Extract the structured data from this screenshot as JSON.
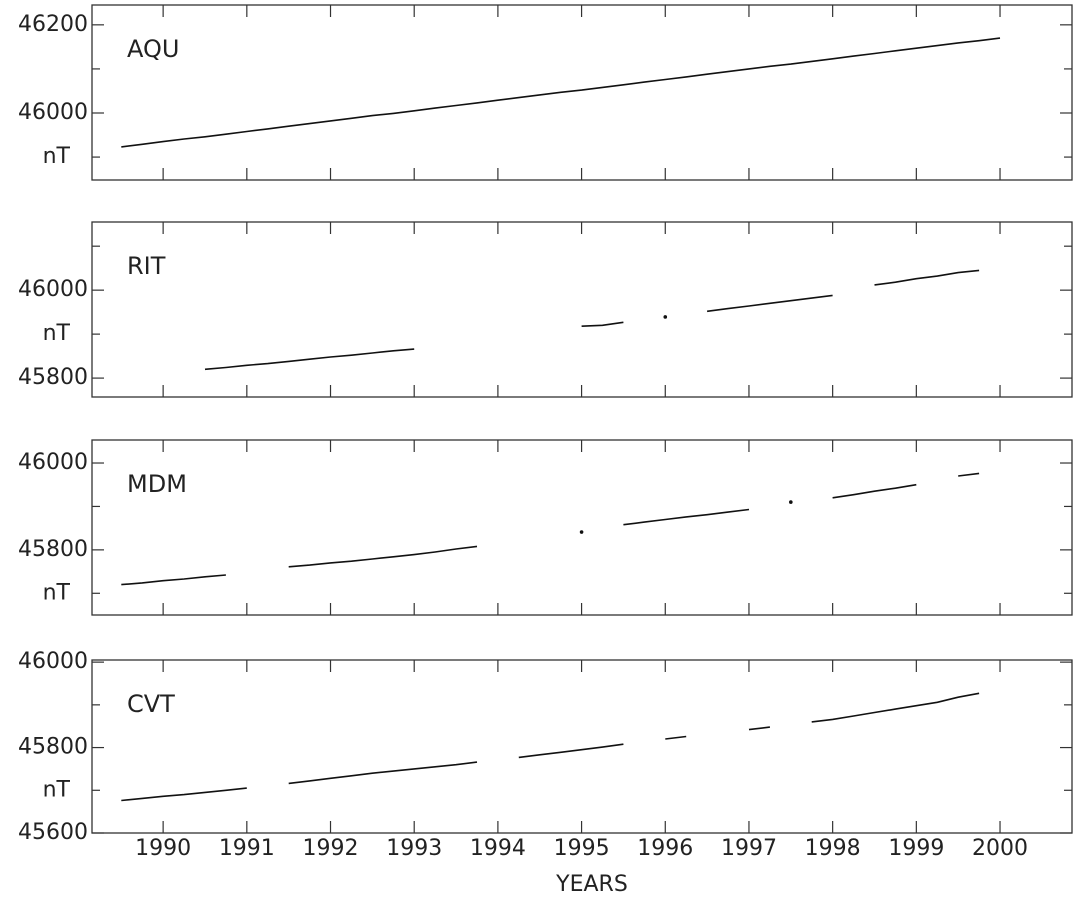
{
  "chart_data": [
    {
      "type": "line",
      "title": "AQU",
      "y_label": "nT",
      "x": [
        1989.5,
        1989.75,
        1990,
        1990.25,
        1990.5,
        1990.75,
        1991,
        1991.25,
        1991.5,
        1991.75,
        1992,
        1992.25,
        1992.5,
        1992.75,
        1993,
        1993.25,
        1993.5,
        1993.75,
        1994,
        1994.25,
        1994.5,
        1994.75,
        1995,
        1995.25,
        1995.5,
        1995.75,
        1996,
        1996.25,
        1996.5,
        1996.75,
        1997,
        1997.25,
        1997.5,
        1997.75,
        1998,
        1998.25,
        1998.5,
        1998.75,
        1999,
        1999.25,
        1999.5,
        1999.75,
        2000
      ],
      "values": [
        45923,
        45929,
        45935,
        45941,
        45946,
        45952,
        45958,
        45964,
        45970,
        45976,
        45982,
        45988,
        45994,
        45999,
        46005,
        46011,
        46017,
        46023,
        46029,
        46035,
        46041,
        46047,
        46052,
        46058,
        46064,
        46070,
        46076,
        46082,
        46088,
        46094,
        46100,
        46106,
        46111,
        46117,
        46123,
        46129,
        46135,
        46141,
        46147,
        46153,
        46159,
        46164,
        46170
      ],
      "color": "#111111",
      "xlim": [
        1989.15,
        2000.86
      ],
      "ylim": [
        45848,
        46245
      ],
      "yticks": [
        46000,
        46200
      ],
      "minor_yticks": [
        45900,
        46100
      ]
    },
    {
      "type": "line",
      "title": "RIT",
      "y_label": "nT",
      "x": [
        1989.5,
        1989.75,
        1990,
        1990.25,
        1990.5,
        1990.75,
        1991,
        1991.25,
        1991.5,
        1991.75,
        1992,
        1992.25,
        1992.5,
        1992.75,
        1993,
        1993.25,
        1993.5,
        1993.75,
        1994,
        1994.25,
        1994.5,
        1994.75,
        1995,
        1995.25,
        1995.5,
        1995.75,
        1996,
        1996.25,
        1996.5,
        1996.75,
        1997,
        1997.25,
        1997.5,
        1997.75,
        1998,
        1998.25,
        1998.5,
        1998.75,
        1999,
        1999.25,
        1999.5,
        1999.75,
        2000
      ],
      "values": [
        null,
        null,
        null,
        null,
        45820,
        45824,
        45829,
        45833,
        45838,
        45843,
        45848,
        45852,
        45857,
        45862,
        45866,
        null,
        null,
        null,
        null,
        null,
        null,
        null,
        45918,
        45920,
        45927,
        null,
        45939,
        null,
        45952,
        45958,
        45964,
        45970,
        45976,
        45982,
        45988,
        null,
        46012,
        46018,
        46026,
        46032,
        46040,
        46045,
        null
      ],
      "color": "#111111",
      "xlim": [
        1989.15,
        2000.86
      ],
      "ylim": [
        45757,
        46155
      ],
      "yticks": [
        45800,
        46000
      ],
      "minor_yticks": [
        45900,
        46100
      ]
    },
    {
      "type": "line",
      "title": "MDM",
      "y_label": "nT",
      "x": [
        1989.5,
        1989.75,
        1990,
        1990.25,
        1990.5,
        1990.75,
        1991,
        1991.25,
        1991.5,
        1991.75,
        1992,
        1992.25,
        1992.5,
        1992.75,
        1993,
        1993.25,
        1993.5,
        1993.75,
        1994,
        1994.25,
        1994.5,
        1994.75,
        1995,
        1995.25,
        1995.5,
        1995.75,
        1996,
        1996.25,
        1996.5,
        1996.75,
        1997,
        1997.25,
        1997.5,
        1997.75,
        1998,
        1998.25,
        1998.5,
        1998.75,
        1999,
        1999.25,
        1999.5,
        1999.75,
        2000
      ],
      "values": [
        45720,
        45724,
        45729,
        45733,
        45738,
        45742,
        null,
        null,
        45761,
        45765,
        45770,
        45774,
        45779,
        45784,
        45789,
        45795,
        45802,
        45808,
        null,
        null,
        null,
        null,
        45841,
        null,
        45858,
        45864,
        45870,
        45876,
        45881,
        45887,
        45893,
        null,
        45910,
        null,
        45920,
        45927,
        45935,
        45942,
        45950,
        null,
        45970,
        45976,
        null
      ],
      "color": "#111111",
      "xlim": [
        1989.15,
        2000.86
      ],
      "ylim": [
        45650,
        46053
      ],
      "yticks": [
        45800,
        46000
      ],
      "minor_yticks": [
        45700,
        45900
      ]
    },
    {
      "type": "line",
      "title": "CVT",
      "y_label": "nT",
      "x_label": "YEARS",
      "x": [
        1989.5,
        1989.75,
        1990,
        1990.25,
        1990.5,
        1990.75,
        1991,
        1991.25,
        1991.5,
        1991.75,
        1992,
        1992.25,
        1992.5,
        1992.75,
        1993,
        1993.25,
        1993.5,
        1993.75,
        1994,
        1994.25,
        1994.5,
        1994.75,
        1995,
        1995.25,
        1995.5,
        1995.75,
        1996,
        1996.25,
        1996.5,
        1996.75,
        1997,
        1997.25,
        1997.5,
        1997.75,
        1998,
        1998.25,
        1998.5,
        1998.75,
        1999,
        1999.25,
        1999.5,
        1999.75,
        2000
      ],
      "values": [
        45676,
        45681,
        45686,
        45690,
        45695,
        45700,
        45705,
        null,
        45716,
        45722,
        45728,
        45734,
        45740,
        45745,
        45750,
        45755,
        45760,
        45766,
        null,
        45777,
        45783,
        45789,
        45795,
        45801,
        45808,
        null,
        45820,
        45826,
        null,
        null,
        45842,
        45848,
        null,
        45860,
        45866,
        45874,
        45882,
        45890,
        45898,
        45906,
        45918,
        45927,
        null
      ],
      "color": "#111111",
      "xlim": [
        1989.15,
        2000.86
      ],
      "ylim": [
        45600,
        46005
      ],
      "yticks": [
        45600,
        45800,
        46000
      ],
      "minor_yticks": [
        45700,
        45900
      ],
      "xticks": [
        1990,
        1991,
        1992,
        1993,
        1994,
        1995,
        1996,
        1997,
        1998,
        1999,
        2000
      ]
    }
  ]
}
